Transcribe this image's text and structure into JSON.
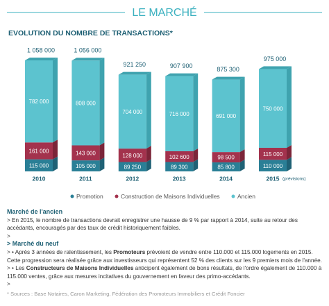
{
  "header": {
    "title": "LE MARCHÉ"
  },
  "chart_data": {
    "type": "stacked-bar",
    "title": "EVOLUTION DU NOMBRE DE TRANSACTIONS*",
    "categories": [
      "2010",
      "2011",
      "2012",
      "2013",
      "2014",
      "2015"
    ],
    "forecast_note": "(prévisions)",
    "series": [
      {
        "name": "Promotion",
        "color": "#2a7f96",
        "side_color": "#1f6175",
        "values": [
          115000,
          105000,
          89250,
          89300,
          85800,
          110000
        ],
        "value_labels": [
          "115 000",
          "105 000",
          "89 250",
          "89 300",
          "85 800",
          "110 000"
        ]
      },
      {
        "name": "Construction de Maisons Individuelles",
        "color": "#a3324d",
        "side_color": "#7c2539",
        "values": [
          161000,
          143000,
          128000,
          102600,
          98500,
          115000
        ],
        "value_labels": [
          "161 000",
          "143 000",
          "128 000",
          "102 600",
          "98 500",
          "115 000"
        ]
      },
      {
        "name": "Ancien",
        "color": "#5cc3cf",
        "side_color": "#3fa3af",
        "values": [
          782000,
          808000,
          704000,
          716000,
          691000,
          750000
        ],
        "value_labels": [
          "782 000",
          "808 000",
          "704 000",
          "716 000",
          "691 000",
          "750 000"
        ]
      }
    ],
    "totals": [
      1058000,
      1056000,
      921250,
      907900,
      875300,
      975000
    ],
    "total_labels": [
      "1 058 000",
      "1 056 000",
      "921 250",
      "907 900",
      "875 300",
      "975 000"
    ]
  },
  "notes": [
    [
      {
        "text": "Marché de l'ancien",
        "bold": true
      }
    ],
    [
      {
        "text": "> En 2015, le nombre de transactions devrait enregistrer une hausse de 9 % par rapport à 2014, suite au retour des accédants, encouragés par des taux de crédit historiquement faibles.",
        "bold": false
      }
    ],
    [
      {
        "text": ">",
        "bold": false
      }
    ],
    [
      {
        "text": "> Marché du neuf",
        "bold": true
      }
    ],
    [
      {
        "text": "> • Après 3 années de ralentissement, les ",
        "bold": false
      },
      {
        "text": "Promoteurs",
        "bold": true
      },
      {
        "text": " prévoient de vendre entre 110.000 et 115.000 logements en 2015. Cette progression sera réalisée grâce aux investisseurs qui représentent 52 % des clients sur les 9 premiers mois de l'année.",
        "bold": false
      }
    ],
    [
      {
        "text": "> • Les ",
        "bold": false
      },
      {
        "text": "Constructeurs de Maisons Individuelles",
        "bold": true
      },
      {
        "text": " anticipent également de bons résultats, de l'ordre également de 110.000 à 115.000 ventes, grâce aux mesures incitatives du gouvernement en faveur des primo-accédants.",
        "bold": false
      }
    ],
    [
      {
        "text": ">",
        "bold": false
      }
    ]
  ],
  "sources": "* Sources : Base Notaires, Caron Marketing, Fédération des Promoteurs Immobiliers et Crédit Foncier"
}
